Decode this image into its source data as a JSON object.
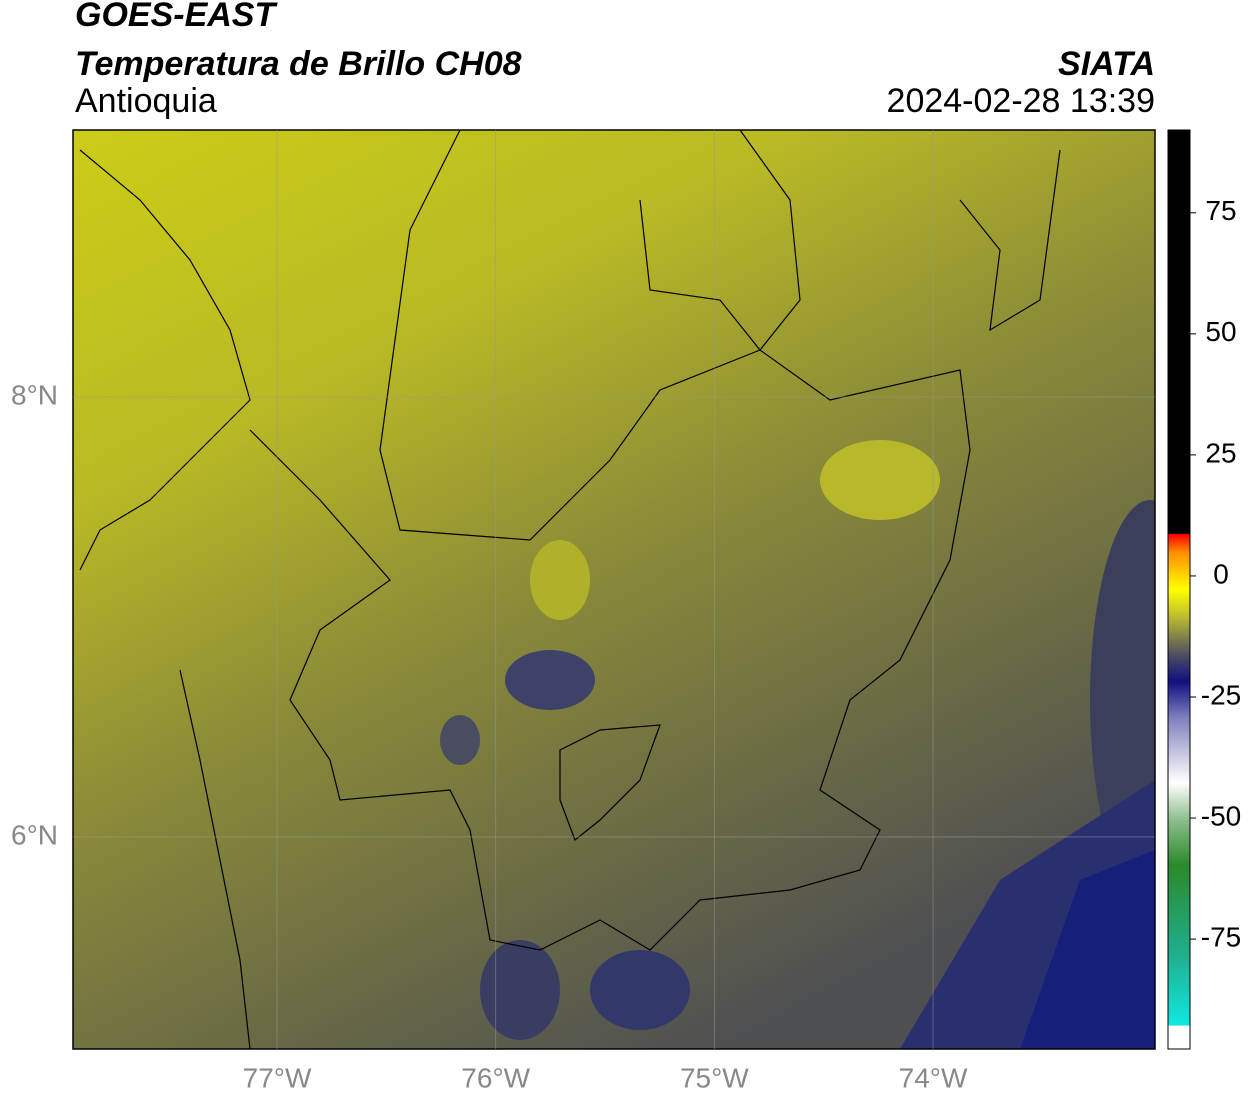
{
  "header": {
    "title": "GOES-EAST",
    "subtitle": "Temperatura de Brillo CH08",
    "region": "Antioquia",
    "source": "SIATA",
    "timestamp": "2024-02-28 13:39"
  },
  "map": {
    "lonlim": [
      -77.933,
      -72.985
    ],
    "latlim": [
      5.036,
      9.214
    ],
    "lon_ticks": [
      {
        "value": -77,
        "label": "77°W"
      },
      {
        "value": -76,
        "label": "76°W"
      },
      {
        "value": -75,
        "label": "75°W"
      },
      {
        "value": -74,
        "label": "74°W"
      }
    ],
    "lat_ticks": [
      {
        "value": 8,
        "label": "8°N"
      },
      {
        "value": 6,
        "label": "6°N"
      }
    ]
  },
  "colorbar": {
    "lim": [
      -97.7,
      92.1
    ],
    "ticks": [
      75,
      50,
      25,
      0,
      -25,
      -50,
      -75
    ]
  }
}
